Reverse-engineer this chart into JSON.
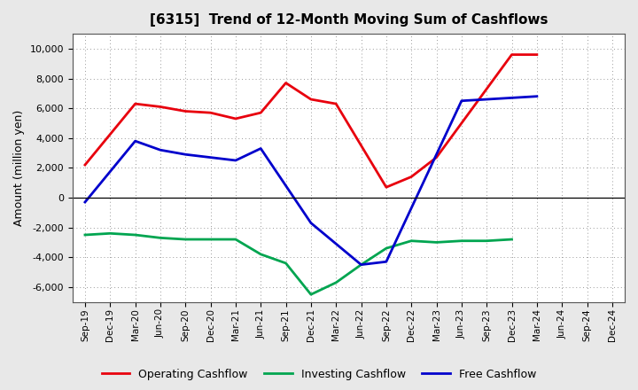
{
  "title": "[6315]  Trend of 12-Month Moving Sum of Cashflows",
  "ylabel": "Amount (million yen)",
  "x_labels": [
    "Sep-19",
    "Dec-19",
    "Mar-20",
    "Jun-20",
    "Sep-20",
    "Dec-20",
    "Mar-21",
    "Jun-21",
    "Sep-21",
    "Dec-21",
    "Mar-22",
    "Jun-22",
    "Sep-22",
    "Dec-22",
    "Mar-23",
    "Jun-23",
    "Sep-23",
    "Dec-23",
    "Mar-24",
    "Jun-24",
    "Sep-24",
    "Dec-24"
  ],
  "op_x": [
    0,
    2,
    3,
    4,
    5,
    6,
    7,
    8,
    9,
    10,
    12,
    13,
    14,
    17,
    18
  ],
  "op_y": [
    2200,
    6300,
    6100,
    5800,
    5700,
    5300,
    5700,
    7700,
    6600,
    6300,
    700,
    1400,
    2700,
    9600,
    9600
  ],
  "inv_x": [
    0,
    1,
    2,
    3,
    4,
    5,
    6,
    7,
    8,
    9,
    10,
    11,
    12,
    13,
    14,
    15,
    16,
    17
  ],
  "inv_y": [
    -2500,
    -2400,
    -2500,
    -2700,
    -2800,
    -2800,
    -2800,
    -3800,
    -4400,
    -6500,
    -5700,
    -4500,
    -3400,
    -2900,
    -3000,
    -2900,
    -2900,
    -2800
  ],
  "free_x": [
    0,
    2,
    3,
    4,
    5,
    6,
    7,
    9,
    11,
    12,
    15,
    16,
    17,
    18
  ],
  "free_y": [
    -300,
    3800,
    3200,
    2900,
    2700,
    2500,
    3300,
    -1700,
    -4500,
    -4300,
    6500,
    6600,
    6700,
    6800
  ],
  "ylim": [
    -7000,
    11000
  ],
  "yticks": [
    -6000,
    -4000,
    -2000,
    0,
    2000,
    4000,
    6000,
    8000,
    10000
  ],
  "bg_color": "#e8e8e8",
  "plot_bg": "#ffffff",
  "op_color": "#e8000d",
  "inv_color": "#00a550",
  "free_color": "#0000cc",
  "legend_labels": [
    "Operating Cashflow",
    "Investing Cashflow",
    "Free Cashflow"
  ]
}
